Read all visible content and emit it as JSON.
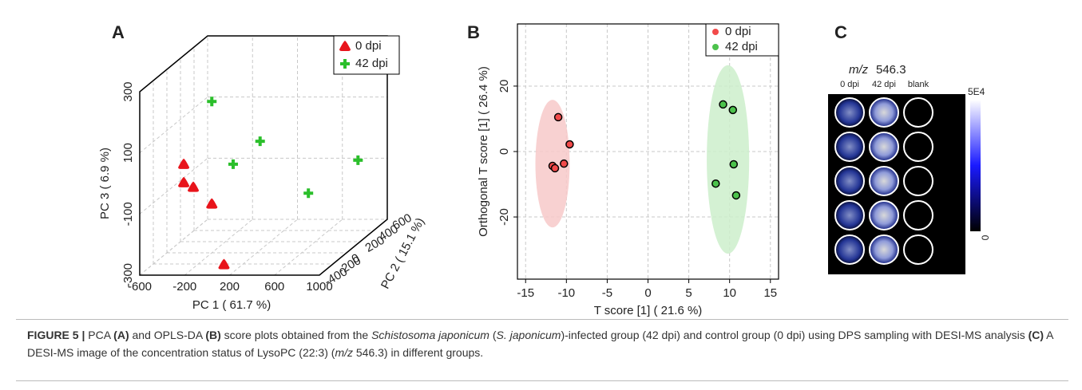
{
  "chart_data": [
    {
      "type": "scatter3d",
      "panel_label": "A",
      "xlabel": "PC 1 ( 61.7 %)",
      "ylabel": "PC 2 ( 15.1 %)",
      "zlabel": "PC 3 ( 6.9 %)",
      "xlim": [
        -600,
        1000
      ],
      "ylim": [
        -400,
        600
      ],
      "zlim": [
        -300,
        300
      ],
      "xticks": [
        -600,
        -200,
        200,
        600,
        1000
      ],
      "yticks": [
        -400,
        -200,
        0,
        200,
        400,
        600
      ],
      "zticks": [
        -300,
        -100,
        100,
        300
      ],
      "grid": true,
      "legend": "upper right",
      "series": [
        {
          "name": "0 dpi",
          "color": "#e8141b",
          "marker": "triangle",
          "x": [
            -450,
            -450,
            -365,
            -200,
            150
          ],
          "y": [
            0,
            0,
            0,
            0,
            -400
          ],
          "z": [
            -10,
            -70,
            -85,
            -140,
            -265
          ]
        },
        {
          "name": "42 dpi",
          "color": "#2bbf2b",
          "marker": "plus",
          "x": [
            -200,
            -10,
            230,
            860,
            660
          ],
          "y": [
            0,
            0,
            0,
            400,
            0
          ],
          "z": [
            195,
            -10,
            65,
            -70,
            -105
          ]
        }
      ]
    },
    {
      "type": "scatter",
      "panel_label": "B",
      "xlabel": "T score [1] ( 21.6 %)",
      "ylabel": "Orthogonal T score [1] ( 26.4 %)",
      "xlim": [
        -16,
        16
      ],
      "ylim": [
        -39,
        39
      ],
      "xticks": [
        -15,
        -10,
        -5,
        0,
        5,
        10,
        15
      ],
      "yticks": [
        -20,
        0,
        20
      ],
      "grid": true,
      "legend": "upper right",
      "series": [
        {
          "name": "0 dpi",
          "color": "#f24a4a",
          "ellipse_color": "#f7c9c9",
          "x": [
            -11,
            -9.6,
            -10.3,
            -11.7,
            -11.4
          ],
          "values": [
            10.5,
            2.2,
            -3.7,
            -4.4,
            -5.1
          ],
          "ellipse": {
            "cx": -11.7,
            "cy": -3.7,
            "rx": 2.1,
            "ry": 19.5
          }
        },
        {
          "name": "42 dpi",
          "color": "#4cc24c",
          "ellipse_color": "#cdeecb",
          "x": [
            9.2,
            10.4,
            10.5,
            8.3,
            10.8
          ],
          "values": [
            14.4,
            12.7,
            -3.9,
            -9.8,
            -13.4
          ],
          "ellipse": {
            "cx": 9.8,
            "cy": -2.4,
            "rx": 2.6,
            "ry": 28.8
          }
        }
      ]
    }
  ],
  "panel_c": {
    "label": "C",
    "mz_label": "m/z",
    "mz_value": "546.3",
    "columns": [
      "0 dpi",
      "42 dpi",
      "blank"
    ],
    "colorbar_max": "5E4",
    "colorbar_min": "0"
  },
  "caption": [
    "FIGURE 5 |",
    " PCA ",
    "(A)",
    " and OPLS-DA ",
    "(B)",
    " score plots obtained from the ",
    "Schistosoma japonicum",
    " (",
    "S. japonicum",
    ")-infected group (42 dpi) and control group (0 dpi) using DPS sampling with DESI-MS analysis ",
    "(C)",
    " A DESI-MS image of the concentration status of LysoPC (22:3) (",
    "m/z",
    " 546.3) in different groups."
  ]
}
